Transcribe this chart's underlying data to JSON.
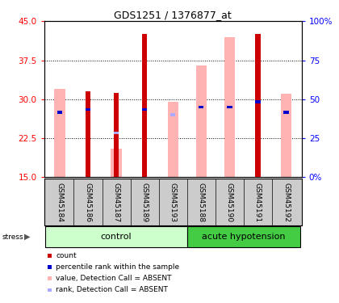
{
  "title": "GDS1251 / 1376877_at",
  "samples": [
    "GSM45184",
    "GSM45186",
    "GSM45187",
    "GSM45189",
    "GSM45193",
    "GSM45188",
    "GSM45190",
    "GSM45191",
    "GSM45192"
  ],
  "red_bars": [
    0,
    31.5,
    31.2,
    42.5,
    0,
    0,
    0,
    42.5,
    0
  ],
  "pink_bars": [
    32.0,
    0,
    20.5,
    0,
    29.5,
    36.5,
    42.0,
    0,
    31.0
  ],
  "blue_dots": [
    27.5,
    28.0,
    0,
    28.0,
    0,
    28.5,
    28.5,
    29.5,
    27.5
  ],
  "lavender_dots": [
    0,
    0,
    23.5,
    0,
    27.0,
    0,
    0,
    0,
    0
  ],
  "ylim": [
    15,
    45
  ],
  "yticks": [
    15,
    22.5,
    30,
    37.5,
    45
  ],
  "y2labels": [
    "0%",
    "25",
    "50",
    "75",
    "100%"
  ],
  "red_color": "#cc0000",
  "pink_color": "#ffb3b3",
  "blue_color": "#0000cc",
  "lavender_color": "#aaaaff",
  "control_light": "#ccffcc",
  "acute_green": "#44cc44",
  "label_bg": "#cccccc",
  "ctrl_n": 5,
  "acute_n": 4
}
